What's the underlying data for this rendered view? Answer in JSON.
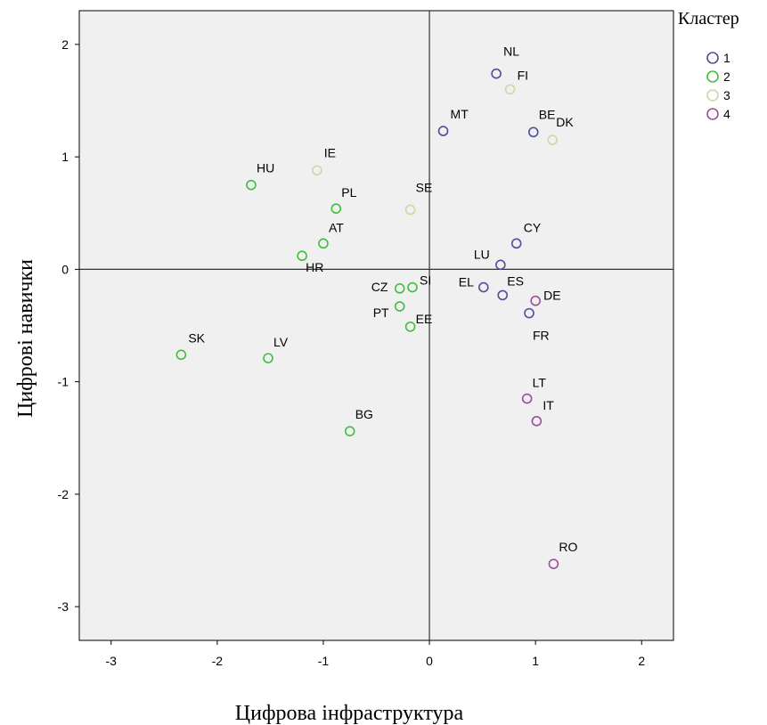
{
  "chart_data": {
    "type": "scatter",
    "xlabel": "Цифрова інфраструктура",
    "ylabel": "Цифрові навички",
    "xlim": [
      -3.3,
      2.3
    ],
    "ylim": [
      -3.3,
      2.3
    ],
    "xticks": [
      -3,
      -2,
      -1,
      0,
      1,
      2
    ],
    "yticks": [
      -3,
      -2,
      -1,
      0,
      1,
      2
    ],
    "reference_lines": {
      "x": 0,
      "y": 0
    },
    "grid": false,
    "legend": {
      "title": "Кластер",
      "placement": "top-right-outside",
      "entries": [
        {
          "label": "1",
          "cluster": 1
        },
        {
          "label": "2",
          "cluster": 2
        },
        {
          "label": "3",
          "cluster": 3
        },
        {
          "label": "4",
          "cluster": 4
        }
      ]
    },
    "colors": {
      "1": "#4f4f9a",
      "2": "#3fbf3f",
      "3": "#d9d1a8",
      "4": "#9a4f9a"
    },
    "points": [
      {
        "label": "NL",
        "x": 0.63,
        "y": 1.74,
        "cluster": 1
      },
      {
        "label": "FI",
        "x": 0.76,
        "y": 1.6,
        "cluster": 3
      },
      {
        "label": "MT",
        "x": 0.13,
        "y": 1.23,
        "cluster": 1
      },
      {
        "label": "BE",
        "x": 0.98,
        "y": 1.22,
        "cluster": 1
      },
      {
        "label": "DK",
        "x": 1.16,
        "y": 1.15,
        "cluster": 3
      },
      {
        "label": "IE",
        "x": -1.06,
        "y": 0.88,
        "cluster": 3
      },
      {
        "label": "HU",
        "x": -1.68,
        "y": 0.75,
        "cluster": 2
      },
      {
        "label": "PL",
        "x": -0.88,
        "y": 0.54,
        "cluster": 2
      },
      {
        "label": "SE",
        "x": -0.18,
        "y": 0.53,
        "cluster": 3
      },
      {
        "label": "AT",
        "x": -1.0,
        "y": 0.23,
        "cluster": 2
      },
      {
        "label": "CY",
        "x": 0.82,
        "y": 0.23,
        "cluster": 1
      },
      {
        "label": "HR",
        "x": -1.2,
        "y": 0.12,
        "cluster": 2
      },
      {
        "label": "LU",
        "x": 0.67,
        "y": 0.04,
        "cluster": 1
      },
      {
        "label": "EL",
        "x": 0.51,
        "y": -0.16,
        "cluster": 1
      },
      {
        "label": "CZ",
        "x": -0.28,
        "y": -0.17,
        "cluster": 2
      },
      {
        "label": "SI",
        "x": -0.16,
        "y": -0.16,
        "cluster": 2
      },
      {
        "label": "ES",
        "x": 0.69,
        "y": -0.23,
        "cluster": 1
      },
      {
        "label": "DE",
        "x": 1.0,
        "y": -0.28,
        "cluster": 4
      },
      {
        "label": "PT",
        "x": -0.28,
        "y": -0.33,
        "cluster": 2
      },
      {
        "label": "FR",
        "x": 0.94,
        "y": -0.39,
        "cluster": 1
      },
      {
        "label": "EE",
        "x": -0.18,
        "y": -0.51,
        "cluster": 2
      },
      {
        "label": "SK",
        "x": -2.34,
        "y": -0.76,
        "cluster": 2
      },
      {
        "label": "LV",
        "x": -1.52,
        "y": -0.79,
        "cluster": 2
      },
      {
        "label": "LT",
        "x": 0.92,
        "y": -1.15,
        "cluster": 4
      },
      {
        "label": "IT",
        "x": 1.01,
        "y": -1.35,
        "cluster": 4
      },
      {
        "label": "BG",
        "x": -0.75,
        "y": -1.44,
        "cluster": 2
      },
      {
        "label": "RO",
        "x": 1.17,
        "y": -2.62,
        "cluster": 4
      }
    ]
  }
}
